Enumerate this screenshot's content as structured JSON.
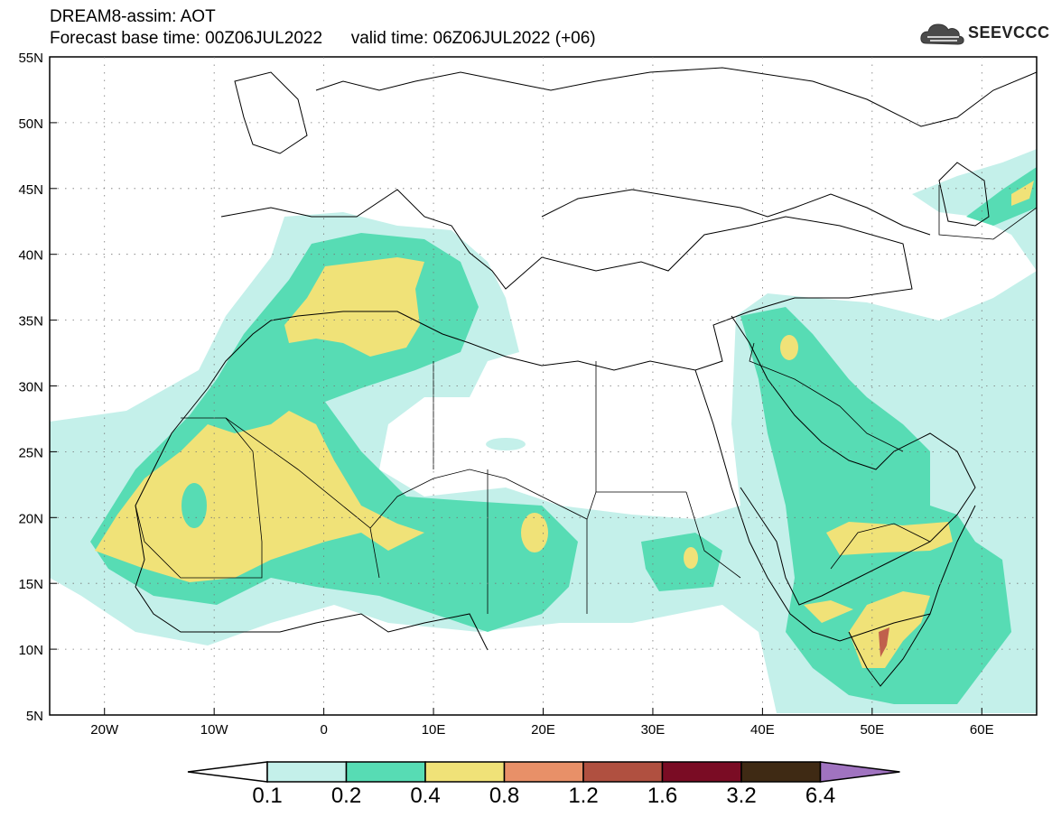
{
  "header": {
    "title_line1": "DREAM8-assim: AOT",
    "title_line2": "Forecast base time: 00Z06JUL2022      valid time: 06Z06JUL2022 (+06)"
  },
  "logo": {
    "text": "SEEVCCC",
    "icon": "cloud-icon"
  },
  "map": {
    "lat_labels": [
      "55N",
      "50N",
      "45N",
      "40N",
      "35N",
      "30N",
      "25N",
      "20N",
      "15N",
      "10N",
      "5N"
    ],
    "lon_labels": [
      "20W",
      "10W",
      "0",
      "10E",
      "20E",
      "30E",
      "40E",
      "50E",
      "60E"
    ],
    "extent": {
      "lon": [
        -25,
        65
      ],
      "lat": [
        5,
        55
      ]
    }
  },
  "colorbar": {
    "levels": [
      "0.1",
      "0.2",
      "0.4",
      "0.8",
      "1.2",
      "1.6",
      "3.2",
      "6.4"
    ],
    "colors": [
      "#c4f0ea",
      "#57dcb4",
      "#f0e278",
      "#e89068",
      "#b05040",
      "#7a0c24",
      "#3f2a14",
      "#a073c0"
    ]
  }
}
